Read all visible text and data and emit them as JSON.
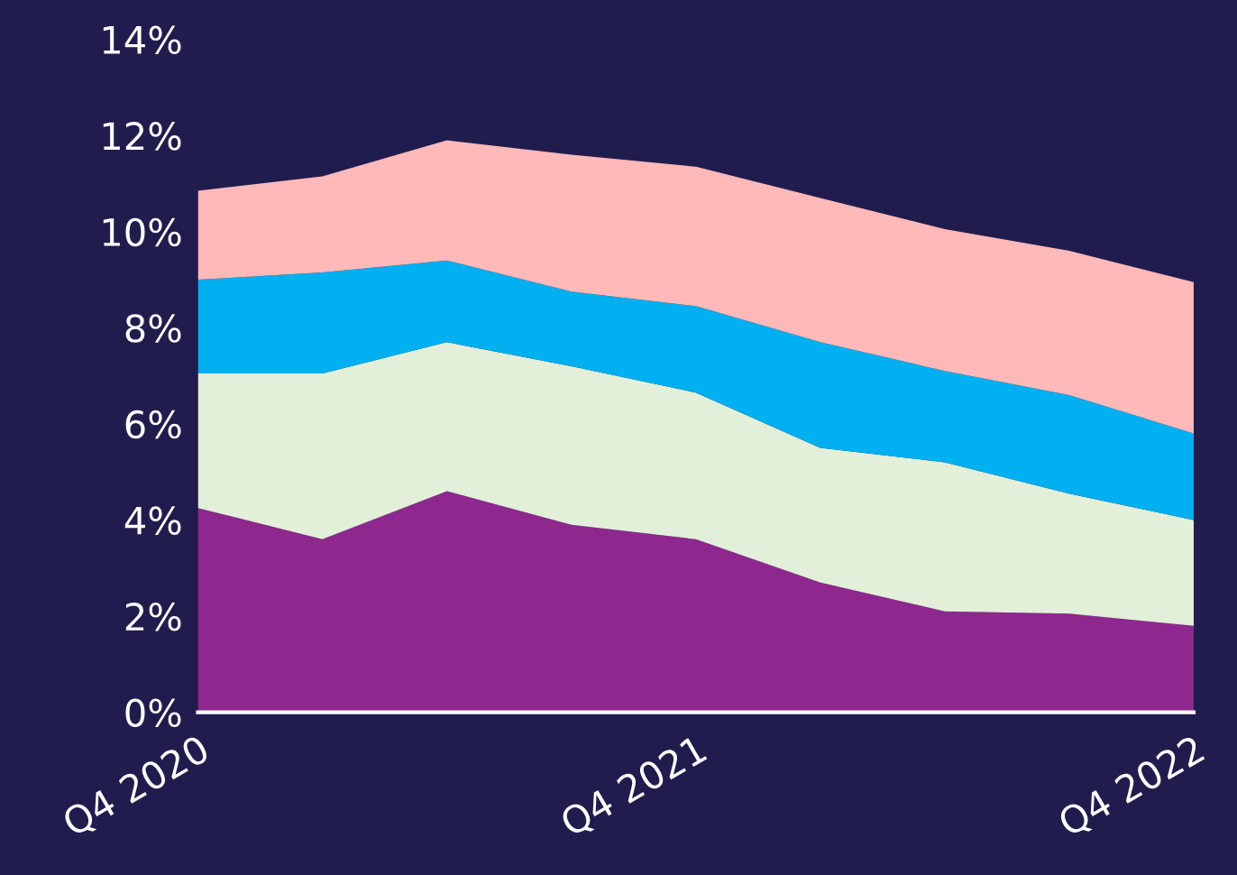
{
  "chart_data": {
    "type": "area",
    "stacked": true,
    "categories": [
      "Q4 2020",
      null,
      null,
      null,
      "Q4 2021",
      null,
      null,
      null,
      "Q4 2022"
    ],
    "series": [
      {
        "color": "#8e288e",
        "values": [
          4.25,
          3.6,
          4.6,
          3.9,
          3.6,
          2.7,
          2.1,
          2.05,
          1.8
        ]
      },
      {
        "color": "#e2efd9",
        "values": [
          2.8,
          3.45,
          3.1,
          3.3,
          3.05,
          2.8,
          3.1,
          2.5,
          2.2
        ]
      },
      {
        "color": "#00b0f0",
        "values": [
          1.95,
          2.1,
          1.7,
          1.55,
          1.8,
          2.2,
          1.9,
          2.05,
          1.8
        ]
      },
      {
        "color": "#ffb9b9",
        "values": [
          1.85,
          2.0,
          2.5,
          2.85,
          2.9,
          3.0,
          2.95,
          3.0,
          3.15
        ]
      }
    ],
    "ylim": [
      0,
      14
    ],
    "yticks": [
      {
        "value": 0,
        "label": "0%"
      },
      {
        "value": 2,
        "label": "2%"
      },
      {
        "value": 4,
        "label": "4%"
      },
      {
        "value": 6,
        "label": "6%"
      },
      {
        "value": 8,
        "label": "8%"
      },
      {
        "value": 10,
        "label": "10%"
      },
      {
        "value": 12,
        "label": "12%"
      },
      {
        "value": 14,
        "label": "14%"
      }
    ],
    "grid": false,
    "legend": false
  }
}
